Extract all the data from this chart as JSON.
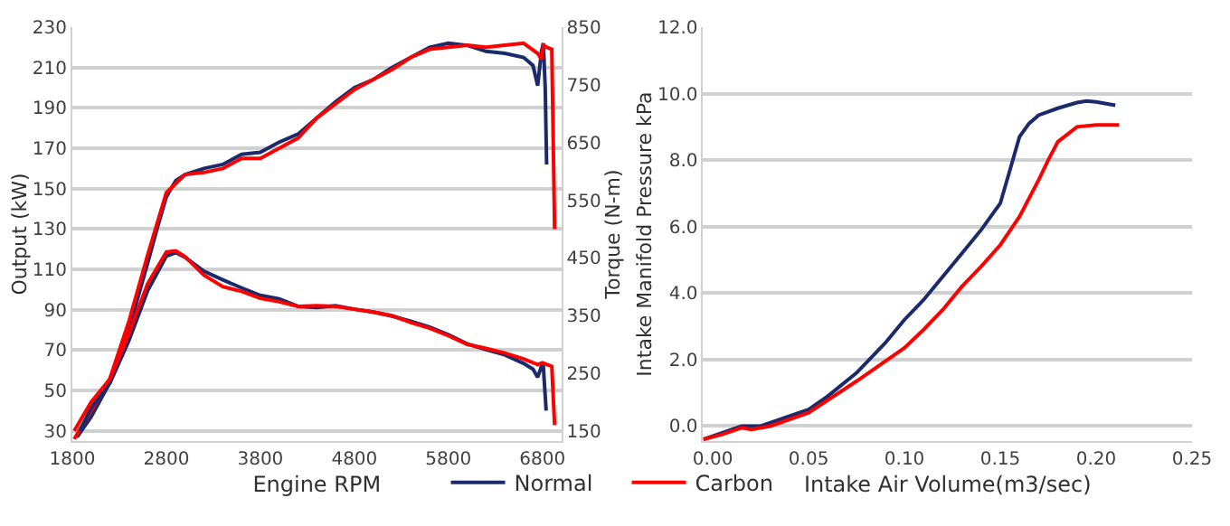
{
  "chart_data": [
    {
      "type": "line",
      "xlabel": "Engine RPM",
      "ylabel": "Output (kW)",
      "y2label": "Torque (N-m)",
      "xlim": [
        1800,
        7000
      ],
      "xticks": [
        1800,
        2800,
        3800,
        4800,
        5800,
        6800
      ],
      "ylim": [
        25,
        230
      ],
      "yticks": [
        30,
        50,
        70,
        90,
        110,
        130,
        150,
        170,
        190,
        210,
        230
      ],
      "y2lim": [
        132.5,
        850
      ],
      "y2ticks": [
        150,
        250,
        350,
        450,
        550,
        650,
        750,
        850
      ],
      "grid": "y",
      "legend": "bottom",
      "marker": "none",
      "line_style": "solid",
      "series": [
        {
          "name": "Normal",
          "color": "#1b2a6b",
          "x": [
            1850,
            2000,
            2200,
            2400,
            2600,
            2700,
            2800,
            2900,
            3000,
            3200,
            3400,
            3600,
            3800,
            4000,
            4200,
            4400,
            4600,
            4800,
            5000,
            5200,
            5400,
            5600,
            5800,
            6000,
            6200,
            6400,
            6600,
            6700,
            6750,
            6790,
            6810,
            6830,
            6845
          ],
          "values": [
            27,
            37,
            54,
            80,
            113,
            130,
            146,
            154,
            157,
            160,
            162,
            167,
            168,
            173,
            177,
            185,
            193,
            200,
            204,
            210,
            215,
            220,
            222,
            221,
            218,
            217,
            215,
            211,
            201,
            218,
            222,
            200,
            162
          ]
        },
        {
          "name": "Carbon",
          "color": "#ff0000",
          "x": [
            1820,
            2000,
            2200,
            2400,
            2600,
            2800,
            3000,
            3200,
            3400,
            3600,
            3800,
            4000,
            4200,
            4400,
            4600,
            4800,
            5000,
            5200,
            5400,
            5600,
            5800,
            6000,
            6200,
            6400,
            6600,
            6750,
            6790,
            6810,
            6850,
            6900,
            6930
          ],
          "values": [
            26,
            40,
            56,
            84,
            117,
            148,
            157,
            158,
            160,
            165,
            165,
            170,
            175,
            185,
            192,
            199,
            204,
            209,
            215,
            219,
            220,
            221,
            220,
            221,
            222,
            217,
            214,
            221,
            220,
            219,
            130
          ]
        },
        {
          "color": "#1b2a6b",
          "axis": "y2",
          "x": [
            1880,
            2000,
            2200,
            2400,
            2600,
            2800,
            2900,
            3000,
            3200,
            3400,
            3600,
            3800,
            4000,
            4200,
            4400,
            4600,
            4800,
            5000,
            5200,
            5400,
            5600,
            5800,
            6000,
            6200,
            6400,
            6600,
            6700,
            6750,
            6790,
            6810,
            6840
          ],
          "values": [
            150,
            190,
            233,
            306,
            393,
            453,
            459,
            451,
            427,
            412,
            398,
            385,
            379,
            366,
            364,
            367,
            361,
            356,
            349,
            340,
            330,
            317,
            301,
            291,
            282,
            267,
            257,
            243,
            262,
            262,
            185
          ]
        },
        {
          "color": "#ff0000",
          "axis": "y2",
          "x": [
            1820,
            2000,
            2200,
            2400,
            2600,
            2800,
            2900,
            3000,
            3200,
            3400,
            3600,
            3800,
            4000,
            4200,
            4400,
            4600,
            4800,
            5000,
            5200,
            5400,
            5600,
            5800,
            6000,
            6200,
            6400,
            6600,
            6750,
            6800,
            6850,
            6900,
            6930
          ],
          "values": [
            150,
            200,
            240,
            318,
            405,
            460,
            462,
            452,
            420,
            400,
            392,
            380,
            374,
            366,
            367,
            366,
            361,
            356,
            350,
            338,
            328,
            315,
            300,
            293,
            285,
            275,
            265,
            268,
            265,
            262,
            160
          ]
        }
      ]
    },
    {
      "type": "line",
      "xlabel": "Intake Air Volume(m3/sec)",
      "ylabel": "Intake Manifold Pressure kPa",
      "xlim": [
        -0.005,
        0.25
      ],
      "xticks": [
        {
          "value": 0,
          "label": "0.00"
        },
        0.05,
        {
          "value": 0.1,
          "label": "0.10"
        },
        0.15,
        {
          "value": 0.2,
          "label": "0.20"
        },
        0.25
      ],
      "ylim": [
        -0.45,
        12
      ],
      "yticks": [
        {
          "value": 0,
          "label": "0.0"
        },
        {
          "value": 2,
          "label": "2.0"
        },
        {
          "value": 4,
          "label": "4.0"
        },
        {
          "value": 6,
          "label": "6.0"
        },
        {
          "value": 8,
          "label": "8.0"
        },
        {
          "value": 10,
          "label": "10.0"
        },
        {
          "value": 12,
          "label": "12.0"
        }
      ],
      "grid": "y",
      "legend": "bottom",
      "marker": "none",
      "line_style": "solid",
      "series": [
        {
          "name": "Normal",
          "color": "#1b2a6b",
          "x": [
            -0.005,
            0.005,
            0.015,
            0.025,
            0.04,
            0.05,
            0.06,
            0.075,
            0.09,
            0.1,
            0.11,
            0.12,
            0.13,
            0.14,
            0.15,
            0.155,
            0.16,
            0.165,
            0.17,
            0.18,
            0.19,
            0.195,
            0.2,
            0.21
          ],
          "values": [
            -0.4,
            -0.2,
            0.0,
            0.0,
            0.3,
            0.5,
            0.9,
            1.6,
            2.5,
            3.2,
            3.8,
            4.5,
            5.2,
            5.9,
            6.7,
            7.7,
            8.7,
            9.1,
            9.35,
            9.56,
            9.73,
            9.78,
            9.75,
            9.65
          ]
        },
        {
          "name": "Carbon",
          "color": "#ff0000",
          "x": [
            -0.005,
            0.005,
            0.015,
            0.02,
            0.03,
            0.05,
            0.075,
            0.1,
            0.11,
            0.12,
            0.13,
            0.14,
            0.15,
            0.16,
            0.17,
            0.175,
            0.18,
            0.19,
            0.2,
            0.212
          ],
          "values": [
            -0.4,
            -0.25,
            -0.05,
            -0.1,
            0.0,
            0.4,
            1.35,
            2.35,
            2.9,
            3.5,
            4.2,
            4.8,
            5.45,
            6.3,
            7.4,
            8.0,
            8.55,
            9.0,
            9.06,
            9.06
          ]
        }
      ]
    }
  ]
}
